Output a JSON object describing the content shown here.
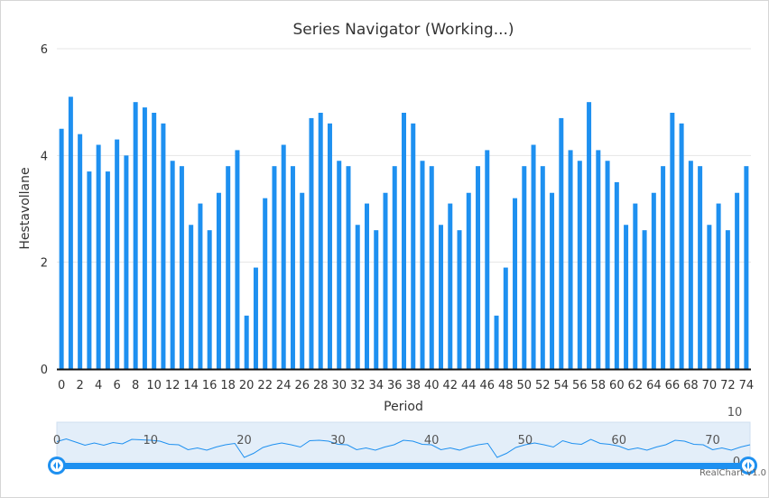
{
  "chart_data": {
    "type": "bar",
    "title": "Series Navigator (Working...)",
    "xlabel": "Period",
    "ylabel": "Hestavollane",
    "ylim": [
      0,
      6
    ],
    "y_ticks": [
      "0",
      "2",
      "4",
      "6"
    ],
    "x": [
      0,
      1,
      2,
      3,
      4,
      5,
      6,
      7,
      8,
      9,
      10,
      11,
      12,
      13,
      14,
      15,
      16,
      17,
      18,
      19,
      20,
      21,
      22,
      23,
      24,
      25,
      26,
      27,
      28,
      29,
      30,
      31,
      32,
      33,
      34,
      35,
      36,
      37,
      38,
      39,
      40,
      41,
      42,
      43,
      44,
      45,
      46,
      47,
      48,
      49,
      50,
      51,
      52,
      53,
      54,
      55,
      56,
      57,
      58,
      59,
      60,
      61,
      62,
      63,
      64,
      65,
      66,
      67,
      68,
      69,
      70,
      71,
      72,
      73,
      74
    ],
    "x_tick_labels": [
      "0",
      "2",
      "4",
      "6",
      "8",
      "10",
      "12",
      "14",
      "16",
      "18",
      "20",
      "22",
      "24",
      "26",
      "28",
      "30",
      "32",
      "34",
      "36",
      "38",
      "40",
      "42",
      "44",
      "46",
      "48",
      "50",
      "52",
      "54",
      "56",
      "58",
      "60",
      "62",
      "64",
      "66",
      "68",
      "70",
      "72",
      "74"
    ],
    "values": [
      4.5,
      5.1,
      4.4,
      3.7,
      4.2,
      3.7,
      4.3,
      4.0,
      5.0,
      4.9,
      4.8,
      4.6,
      3.9,
      3.8,
      2.7,
      3.1,
      2.6,
      3.3,
      3.8,
      4.1,
      1.0,
      1.9,
      3.2,
      3.8,
      4.2,
      3.8,
      3.3,
      4.7,
      4.8,
      4.6,
      3.9,
      3.8,
      2.7,
      3.1,
      2.6,
      3.3,
      3.8,
      4.8,
      4.6,
      3.9,
      3.8,
      2.7,
      3.1,
      2.6,
      3.3,
      3.8,
      4.1,
      1.0,
      1.9,
      3.2,
      3.8,
      4.2,
      3.8,
      3.3,
      4.7,
      4.1,
      3.9,
      5.0,
      4.1,
      3.9,
      3.5,
      2.7,
      3.1,
      2.6,
      3.3,
      3.8,
      4.8,
      4.6,
      3.9,
      3.8,
      2.7,
      3.1,
      2.6,
      3.3,
      3.8
    ],
    "grid": true,
    "bar_color": "#1e90f0",
    "navigator": {
      "x_tick_labels": [
        "0",
        "10",
        "20",
        "30",
        "40",
        "50",
        "60",
        "70"
      ],
      "y_tick_labels": [
        "10",
        "0"
      ],
      "fill": "#e3eef9",
      "line_color": "#1e90f0",
      "handle_color": "#1e90f0"
    }
  },
  "credit": "RealChart v1.0"
}
